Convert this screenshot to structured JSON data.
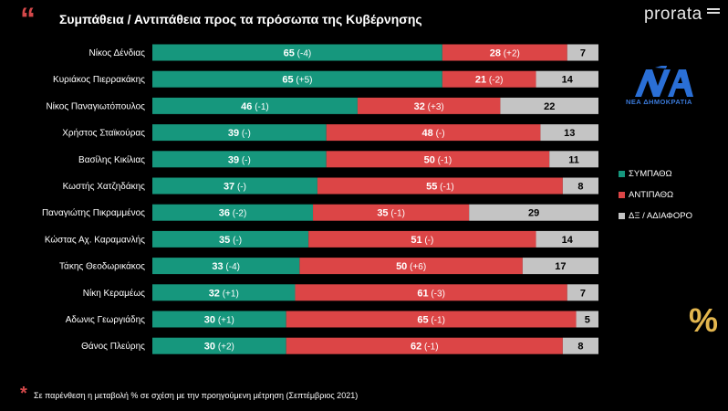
{
  "title": "Συμπάθεια / Αντιπάθεια προς τα πρόσωπα της Κυβέρνησης",
  "brand": "prorata",
  "logo_text": "ΝΕΑ ΔΗΜΟΚΡΑΤΙΑ",
  "percent_symbol": "%",
  "footnote": "Σε παρένθεση η μεταβολή % σε σχέση με την προηγούμενη μέτρηση (Σεπτέμβριος 2021)",
  "colors": {
    "sympatho": "#16977d",
    "antipatho": "#dc4546",
    "de": "#c4c4c4",
    "accent": "#d4484a"
  },
  "legend": [
    {
      "label": "ΣΥΜΠΑΘΩ",
      "color": "#16977d"
    },
    {
      "label": "ΑΝΤΙΠΑΘΩ",
      "color": "#dc4546"
    },
    {
      "label": "ΔΞ / ΑΔΙΑΦΟΡΟ",
      "color": "#c4c4c4"
    }
  ],
  "chart_data": {
    "type": "bar",
    "orientation": "horizontal",
    "stacked": true,
    "xlim": [
      0,
      100
    ],
    "categories": [
      "Νίκος Δένδιας",
      "Κυριάκος Πιερρακάκης",
      "Νίκος Παναγιωτόπουλος",
      "Χρήστος Σταϊκούρας",
      "Βασίλης Κικίλιας",
      "Κωστής Χατζηδάκης",
      "Παναγιώτης Πικραμμένος",
      "Κώστας Αχ. Καραμανλής",
      "Τάκης Θεοδωρικάκος",
      "Νίκη Κεραμέως",
      "Αδωνις Γεωργιάδης",
      "Θάνος Πλεύρης"
    ],
    "series": [
      {
        "name": "ΣΥΜΠΑΘΩ",
        "color": "#16977d",
        "values": [
          65,
          65,
          46,
          39,
          39,
          37,
          36,
          35,
          33,
          32,
          30,
          30
        ],
        "changes": [
          "(-4)",
          "(+5)",
          "(-1)",
          "(-)",
          "(-)",
          "(-)",
          "(-2)",
          "(-)",
          "(-4)",
          "(+1)",
          "(+1)",
          "(+2)"
        ]
      },
      {
        "name": "ΑΝΤΙΠΑΘΩ",
        "color": "#dc4546",
        "values": [
          28,
          21,
          32,
          48,
          50,
          55,
          35,
          51,
          50,
          61,
          65,
          62
        ],
        "changes": [
          "(+2)",
          "(-2)",
          "(+3)",
          "(-)",
          "(-1)",
          "(-1)",
          "(-1)",
          "(-)",
          "(+6)",
          "(-3)",
          "(-1)",
          "(-1)"
        ]
      },
      {
        "name": "ΔΞ / ΑΔΙΑΦΟΡΟ",
        "color": "#c4c4c4",
        "values": [
          7,
          14,
          22,
          13,
          11,
          8,
          29,
          14,
          17,
          7,
          5,
          8
        ],
        "changes": [
          "",
          "",
          "",
          "",
          "",
          "",
          "",
          "",
          "",
          "",
          "",
          ""
        ]
      }
    ]
  }
}
